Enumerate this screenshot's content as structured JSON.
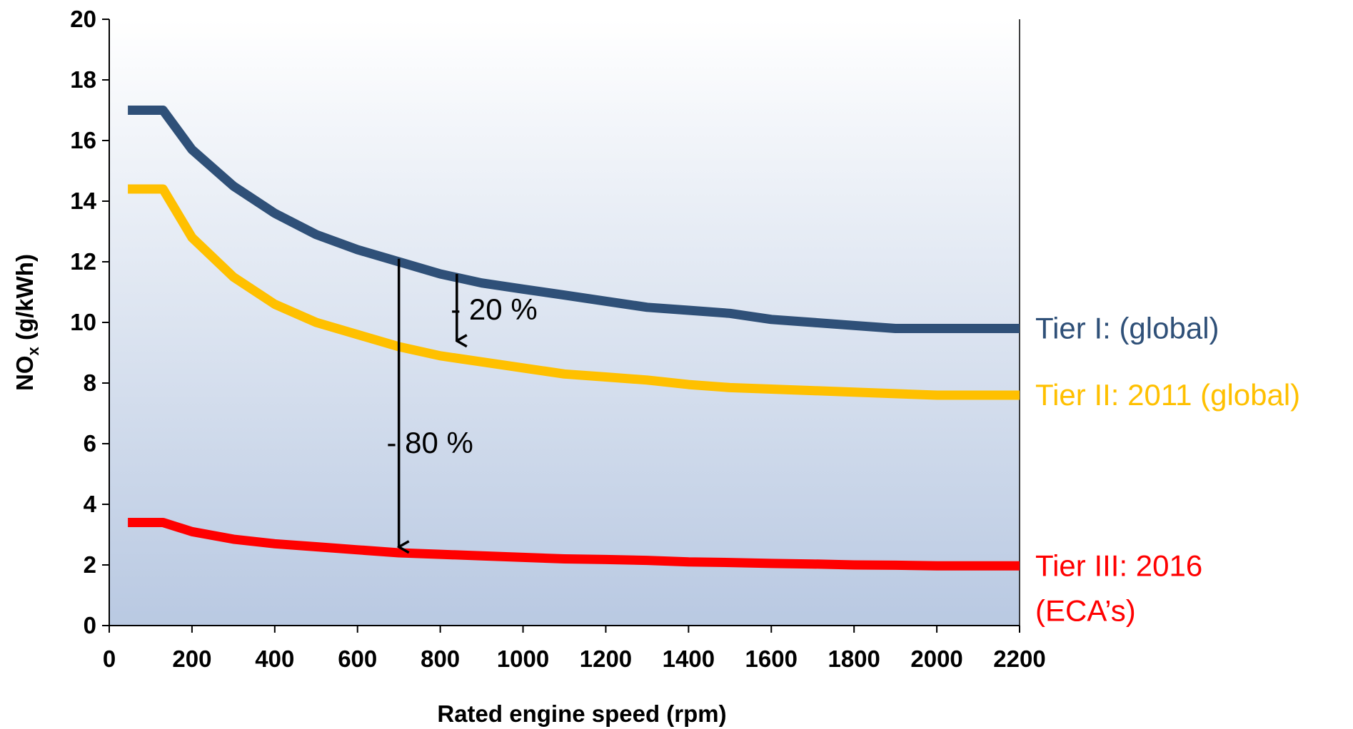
{
  "chart_data": {
    "type": "line",
    "xlabel": "Rated engine speed (rpm)",
    "ylabel_main": "NO",
    "ylabel_sub": "x",
    "ylabel_unit": " (g/kWh)",
    "xlim": [
      0,
      2200
    ],
    "ylim": [
      0,
      20
    ],
    "x_ticks": [
      0,
      200,
      400,
      600,
      800,
      1000,
      1200,
      1400,
      1600,
      1800,
      2000,
      2200
    ],
    "y_ticks": [
      0,
      2,
      4,
      6,
      8,
      10,
      12,
      14,
      16,
      18,
      20
    ],
    "grid": false,
    "background": "gradient white to light blue",
    "series": [
      {
        "key": "tier1",
        "label_lines": [
          "Tier I: (global)"
        ],
        "color": "#2F5078",
        "x": [
          45,
          130,
          200,
          300,
          400,
          500,
          600,
          700,
          800,
          900,
          1000,
          1100,
          1200,
          1300,
          1400,
          1500,
          1600,
          1700,
          1800,
          1900,
          2000,
          2200
        ],
        "y": [
          17.0,
          17.0,
          15.7,
          14.5,
          13.6,
          12.9,
          12.4,
          12.0,
          11.6,
          11.3,
          11.1,
          10.9,
          10.7,
          10.5,
          10.4,
          10.3,
          10.1,
          10.0,
          9.9,
          9.8,
          9.8,
          9.8
        ]
      },
      {
        "key": "tier2",
        "label_lines": [
          "Tier II: 2011 (global)"
        ],
        "color": "#FFC000",
        "x": [
          45,
          130,
          200,
          300,
          400,
          500,
          600,
          700,
          800,
          900,
          1000,
          1100,
          1200,
          1300,
          1400,
          1500,
          1600,
          1700,
          1800,
          1900,
          2000,
          2200
        ],
        "y": [
          14.4,
          14.4,
          12.8,
          11.5,
          10.6,
          10.0,
          9.6,
          9.2,
          8.9,
          8.7,
          8.5,
          8.3,
          8.2,
          8.1,
          7.95,
          7.85,
          7.8,
          7.75,
          7.7,
          7.65,
          7.6,
          7.6
        ]
      },
      {
        "key": "tier3",
        "label_lines": [
          "Tier III: 2016",
          "(ECA’s)"
        ],
        "color": "#FF0000",
        "x": [
          45,
          130,
          200,
          300,
          400,
          500,
          600,
          700,
          800,
          900,
          1000,
          1100,
          1200,
          1300,
          1400,
          1500,
          1600,
          1700,
          1800,
          1900,
          2000,
          2200
        ],
        "y": [
          3.4,
          3.4,
          3.1,
          2.85,
          2.7,
          2.6,
          2.5,
          2.4,
          2.35,
          2.3,
          2.25,
          2.2,
          2.18,
          2.15,
          2.1,
          2.08,
          2.05,
          2.03,
          2.0,
          1.99,
          1.97,
          1.97
        ]
      }
    ],
    "annotations": [
      {
        "key": "reduction-20",
        "text": "- 20 %",
        "arrow_x": 840,
        "from_y": 11.6,
        "to_y": 9.3,
        "text_x": 930,
        "text_y": 10.1
      },
      {
        "key": "reduction-80",
        "text": "- 80 %",
        "arrow_x": 700,
        "from_y": 12.1,
        "to_y": 2.5,
        "text_x": 775,
        "text_y": 5.7
      }
    ]
  }
}
